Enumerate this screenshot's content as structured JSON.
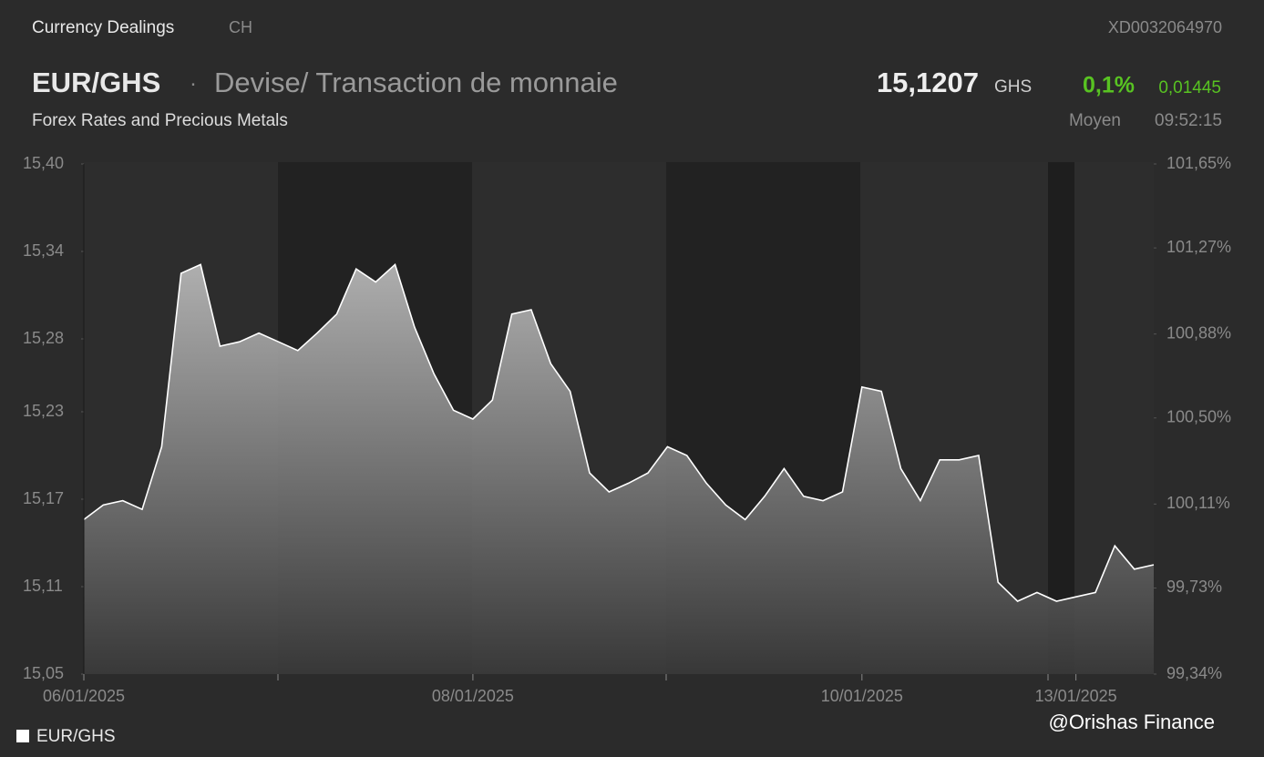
{
  "header": {
    "section": "Currency Dealings",
    "country": "CH",
    "isin": "XD0032064970",
    "pair": "EUR/GHS",
    "separator": "·",
    "description": "Devise/ Transaction de monnaie",
    "price": "15,1207",
    "currency": "GHS",
    "change_pct": "0,1%",
    "change_abs": "0,01445",
    "market": "Forex Rates and Precious Metals",
    "price_type": "Moyen",
    "time": "09:52:15"
  },
  "chart_data": {
    "type": "area",
    "categories": [
      "06/01/2025",
      null,
      null,
      null,
      null,
      null,
      null,
      null,
      null,
      null,
      null,
      null,
      null,
      null,
      null,
      null,
      null,
      null,
      null,
      null,
      "08/01/2025",
      null,
      null,
      null,
      null,
      null,
      null,
      null,
      null,
      null,
      null,
      null,
      null,
      null,
      null,
      null,
      null,
      null,
      null,
      null,
      "10/01/2025",
      null,
      null,
      null,
      null,
      null,
      null,
      null,
      null,
      null,
      null,
      "13/01/2025",
      null,
      null,
      null,
      null
    ],
    "series": [
      {
        "name": "EUR/GHS",
        "color": "#ffffff",
        "values": [
          15.156,
          15.166,
          15.169,
          15.163,
          15.206,
          15.325,
          15.331,
          15.275,
          15.278,
          15.284,
          15.278,
          15.272,
          15.284,
          15.297,
          15.328,
          15.319,
          15.331,
          15.288,
          15.256,
          15.231,
          15.225,
          15.238,
          15.297,
          15.3,
          15.263,
          15.244,
          15.188,
          15.175,
          15.181,
          15.188,
          15.206,
          15.2,
          15.181,
          15.166,
          15.156,
          15.172,
          15.191,
          15.172,
          15.169,
          15.175,
          15.247,
          15.244,
          15.191,
          15.169,
          15.197,
          15.197,
          15.2,
          15.113,
          15.1,
          15.106,
          15.1,
          15.103,
          15.106,
          15.138,
          15.122,
          15.125
        ]
      }
    ],
    "ylim": [
      15.05,
      15.4
    ],
    "yticks": [
      {
        "value": 15.05,
        "label": "15,05"
      },
      {
        "value": 15.11,
        "label": "15,11"
      },
      {
        "value": 15.17,
        "label": "15,17"
      },
      {
        "value": 15.23,
        "label": "15,23"
      },
      {
        "value": 15.28,
        "label": "15,28"
      },
      {
        "value": 15.34,
        "label": "15,34"
      },
      {
        "value": 15.4,
        "label": "15,40"
      }
    ],
    "y2lim": [
      99.34,
      101.65
    ],
    "y2ticks": [
      {
        "value": 99.34,
        "label": "99,34%"
      },
      {
        "value": 99.73,
        "label": "99,73%"
      },
      {
        "value": 100.11,
        "label": "100,11%"
      },
      {
        "value": 100.5,
        "label": "100,50%"
      },
      {
        "value": 100.88,
        "label": "100,88%"
      },
      {
        "value": 101.27,
        "label": "101,27%"
      },
      {
        "value": 101.65,
        "label": "101,65%"
      }
    ],
    "legend": "bottom-left",
    "watermark": "@Orishas Finance"
  }
}
